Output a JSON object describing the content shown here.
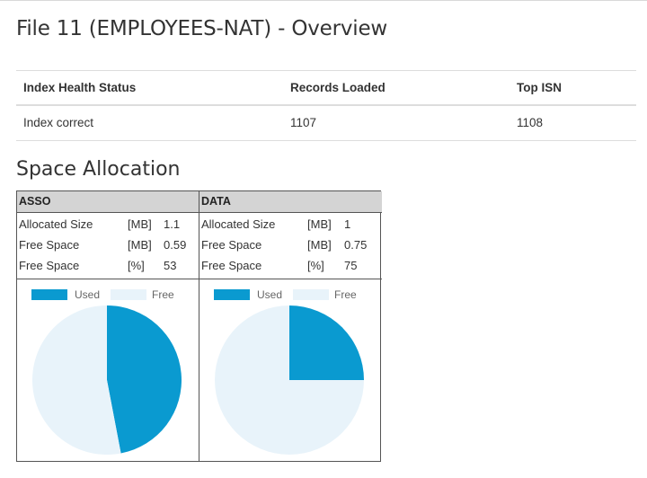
{
  "page": {
    "title": "File 11 (EMPLOYEES-NAT) - Overview",
    "section_title": "Space Allocation"
  },
  "overview": {
    "headers": [
      "Index Health Status",
      "Records Loaded",
      "Top ISN"
    ],
    "row": [
      "Index correct",
      "1107",
      "1108"
    ]
  },
  "colors": {
    "used": "#0a9ad0",
    "free": "#e8f3fa",
    "border": "#555555",
    "header_bg": "#d4d4d4"
  },
  "space": {
    "asso": {
      "title": "ASSO",
      "metrics": [
        {
          "label": "Allocated Size",
          "unit": "[MB]",
          "value": "1.1"
        },
        {
          "label": "Free Space",
          "unit": "[MB]",
          "value": "0.59"
        },
        {
          "label": "Free Space",
          "unit": "[%]",
          "value": "53"
        }
      ],
      "legend": {
        "used": "Used",
        "free": "Free"
      }
    },
    "data": {
      "title": "DATA",
      "metrics": [
        {
          "label": "Allocated Size",
          "unit": "[MB]",
          "value": "1"
        },
        {
          "label": "Free Space",
          "unit": "[MB]",
          "value": "0.75"
        },
        {
          "label": "Free Space",
          "unit": "[%]",
          "value": "75"
        }
      ],
      "legend": {
        "used": "Used",
        "free": "Free"
      }
    }
  },
  "chart_data": [
    {
      "type": "pie",
      "name": "ASSO",
      "categories": [
        "Used",
        "Free"
      ],
      "values": [
        47,
        53
      ]
    },
    {
      "type": "pie",
      "name": "DATA",
      "categories": [
        "Used",
        "Free"
      ],
      "values": [
        25,
        75
      ]
    }
  ]
}
